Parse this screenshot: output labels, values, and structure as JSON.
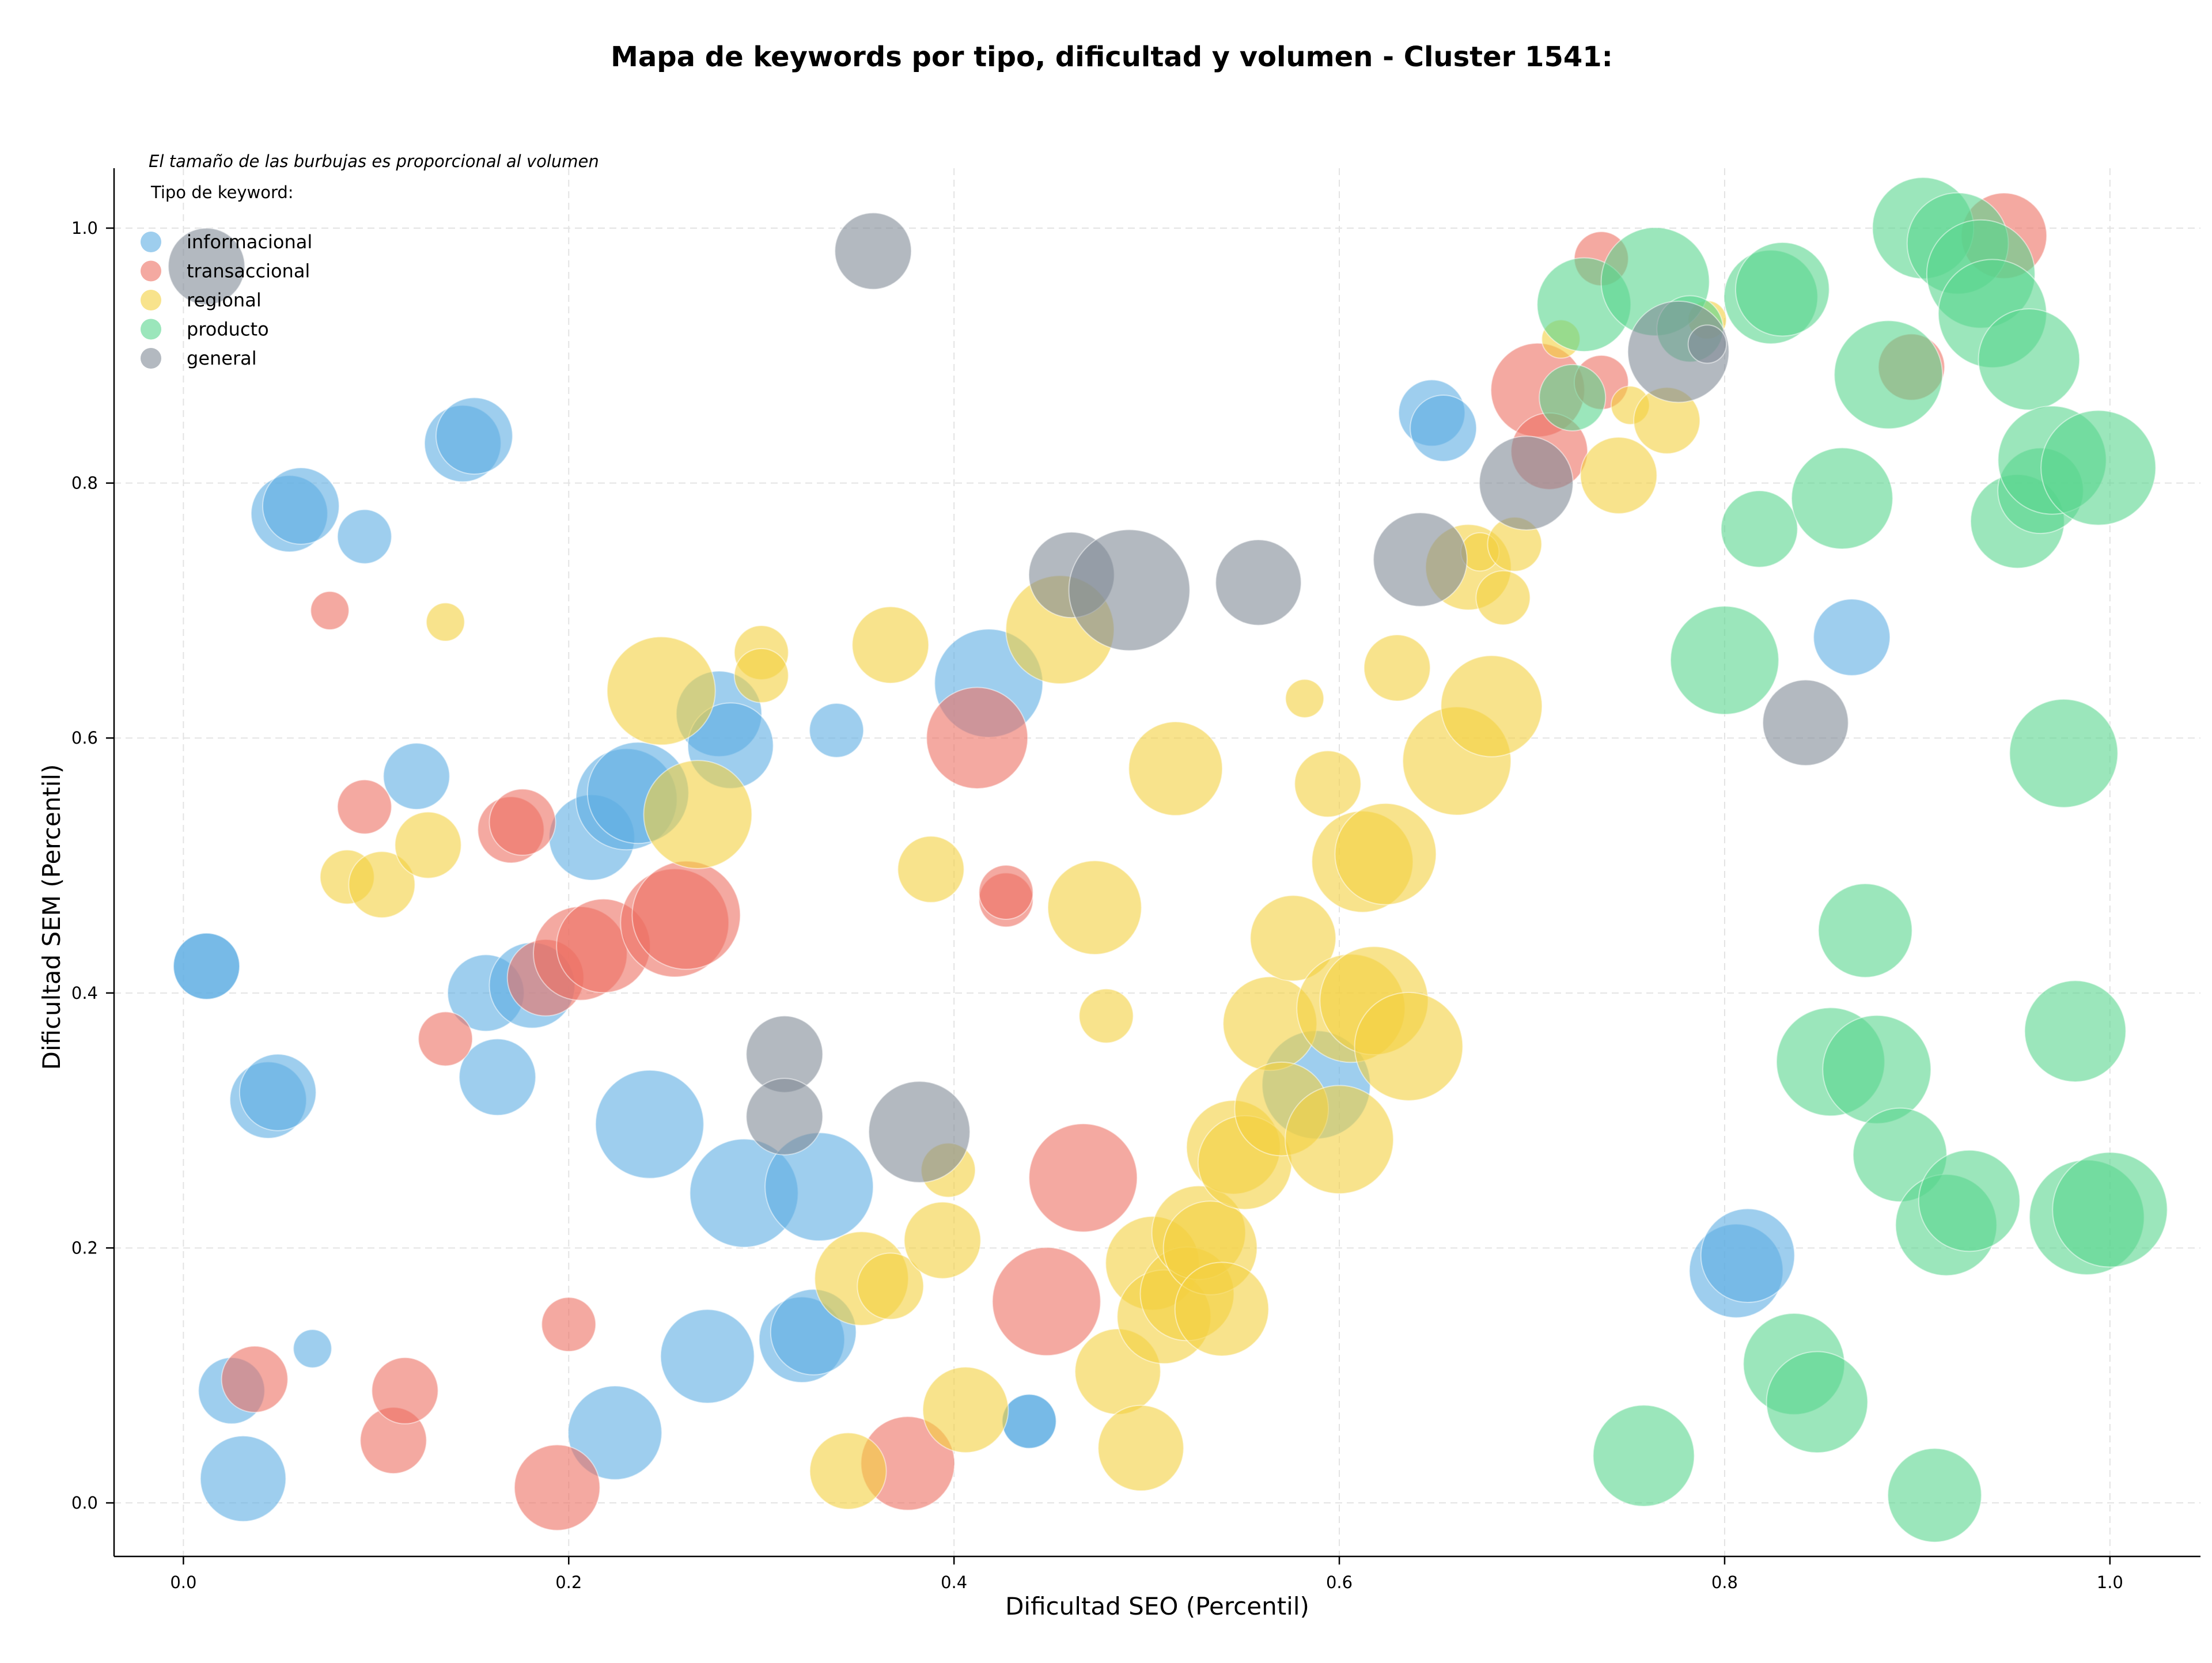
{
  "chart_data": {
    "type": "scatter",
    "title": "Mapa de keywords por tipo, dificultad y volumen - Cluster 1541:",
    "xlabel": "Dificultad SEO (Percentil)",
    "ylabel": "Dificultad SEM (Percentil)",
    "xlim": [
      -0.036,
      1.047
    ],
    "ylim": [
      -0.042,
      1.047
    ],
    "xticks": [
      0.0,
      0.2,
      0.4,
      0.6,
      0.8,
      1.0
    ],
    "yticks": [
      0.0,
      0.2,
      0.4,
      0.6,
      0.8,
      1.0
    ],
    "xtick_labels": [
      "0.0",
      "0.2",
      "0.4",
      "0.6",
      "0.8",
      "1.0"
    ],
    "ytick_labels": [
      "0.0",
      "0.2",
      "0.4",
      "0.6",
      "0.8",
      "1.0"
    ],
    "grid": true,
    "annotation": "El tamaño de las burbujas es proporcional al volumen",
    "legend": {
      "title": "Tipo de keyword:",
      "placement": "top-left"
    },
    "size_encoding": "volume (relative bubble size 1-10)",
    "series": [
      {
        "name": "informacional",
        "color": "#5dade2",
        "points": [
          [
            0.012,
            0.421,
            3
          ],
          [
            0.012,
            0.421,
            3
          ],
          [
            0.025,
            0.088,
            3
          ],
          [
            0.031,
            0.019,
            5
          ],
          [
            0.044,
            0.316,
            4
          ],
          [
            0.049,
            0.322,
            4
          ],
          [
            0.055,
            0.776,
            4
          ],
          [
            0.061,
            0.782,
            4
          ],
          [
            0.067,
            0.121,
            1
          ],
          [
            0.094,
            0.758,
            2
          ],
          [
            0.121,
            0.57,
            3
          ],
          [
            0.145,
            0.831,
            4
          ],
          [
            0.151,
            0.837,
            4
          ],
          [
            0.157,
            0.4,
            4
          ],
          [
            0.163,
            0.334,
            4
          ],
          [
            0.181,
            0.406,
            5
          ],
          [
            0.212,
            0.522,
            5
          ],
          [
            0.224,
            0.055,
            6
          ],
          [
            0.23,
            0.552,
            7
          ],
          [
            0.236,
            0.557,
            7
          ],
          [
            0.242,
            0.297,
            8
          ],
          [
            0.272,
            0.115,
            6
          ],
          [
            0.278,
            0.619,
            5
          ],
          [
            0.284,
            0.594,
            5
          ],
          [
            0.291,
            0.243,
            8
          ],
          [
            0.321,
            0.128,
            5
          ],
          [
            0.327,
            0.134,
            5
          ],
          [
            0.33,
            0.248,
            8
          ],
          [
            0.339,
            0.606,
            2
          ],
          [
            0.418,
            0.643,
            8
          ],
          [
            0.439,
            0.064,
            2
          ],
          [
            0.439,
            0.064,
            2
          ],
          [
            0.588,
            0.328,
            8
          ],
          [
            0.648,
            0.855,
            3
          ],
          [
            0.654,
            0.843,
            3
          ],
          [
            0.806,
            0.182,
            6
          ],
          [
            0.812,
            0.194,
            6
          ],
          [
            0.866,
            0.679,
            4
          ]
        ]
      },
      {
        "name": "transaccional",
        "color": "#ec7063",
        "points": [
          [
            0.037,
            0.097,
            3
          ],
          [
            0.076,
            0.7,
            1
          ],
          [
            0.094,
            0.546,
            2
          ],
          [
            0.109,
            0.049,
            3
          ],
          [
            0.115,
            0.088,
            3
          ],
          [
            0.136,
            0.364,
            2
          ],
          [
            0.17,
            0.528,
            3
          ],
          [
            0.176,
            0.534,
            3
          ],
          [
            0.188,
            0.412,
            4
          ],
          [
            0.194,
            0.012,
            5
          ],
          [
            0.2,
            0.14,
            2
          ],
          [
            0.206,
            0.431,
            6
          ],
          [
            0.218,
            0.437,
            6
          ],
          [
            0.255,
            0.455,
            8
          ],
          [
            0.261,
            0.461,
            8
          ],
          [
            0.376,
            0.031,
            6
          ],
          [
            0.412,
            0.6,
            7
          ],
          [
            0.427,
            0.473,
            2
          ],
          [
            0.427,
            0.479,
            2
          ],
          [
            0.448,
            0.158,
            8
          ],
          [
            0.467,
            0.255,
            8
          ],
          [
            0.703,
            0.873,
            6
          ],
          [
            0.709,
            0.825,
            4
          ],
          [
            0.736,
            0.976,
            2
          ],
          [
            0.736,
            0.879,
            2
          ],
          [
            0.897,
            0.891,
            3
          ],
          [
            0.945,
            0.994,
            5
          ]
        ]
      },
      {
        "name": "regional",
        "color": "#f4d03f",
        "points": [
          [
            0.085,
            0.491,
            2
          ],
          [
            0.103,
            0.485,
            3
          ],
          [
            0.127,
            0.516,
            3
          ],
          [
            0.136,
            0.691,
            1
          ],
          [
            0.248,
            0.637,
            8
          ],
          [
            0.267,
            0.54,
            8
          ],
          [
            0.3,
            0.667,
            2
          ],
          [
            0.3,
            0.649,
            2
          ],
          [
            0.345,
            0.025,
            4
          ],
          [
            0.352,
            0.176,
            6
          ],
          [
            0.367,
            0.673,
            4
          ],
          [
            0.367,
            0.17,
            3
          ],
          [
            0.388,
            0.497,
            3
          ],
          [
            0.394,
            0.206,
            4
          ],
          [
            0.397,
            0.261,
            2
          ],
          [
            0.406,
            0.073,
            5
          ],
          [
            0.455,
            0.685,
            8
          ],
          [
            0.473,
            0.467,
            6
          ],
          [
            0.479,
            0.382,
            2
          ],
          [
            0.485,
            0.103,
            5
          ],
          [
            0.497,
            0.043,
            5
          ],
          [
            0.503,
            0.188,
            6
          ],
          [
            0.509,
            0.146,
            6
          ],
          [
            0.515,
            0.576,
            6
          ],
          [
            0.521,
            0.164,
            6
          ],
          [
            0.527,
            0.212,
            6
          ],
          [
            0.533,
            0.2,
            6
          ],
          [
            0.539,
            0.152,
            6
          ],
          [
            0.545,
            0.279,
            6
          ],
          [
            0.551,
            0.267,
            6
          ],
          [
            0.564,
            0.376,
            6
          ],
          [
            0.57,
            0.309,
            6
          ],
          [
            0.576,
            0.443,
            5
          ],
          [
            0.582,
            0.631,
            1
          ],
          [
            0.594,
            0.564,
            3
          ],
          [
            0.6,
            0.285,
            8
          ],
          [
            0.606,
            0.388,
            8
          ],
          [
            0.612,
            0.503,
            7
          ],
          [
            0.618,
            0.394,
            8
          ],
          [
            0.624,
            0.509,
            7
          ],
          [
            0.63,
            0.655,
            3
          ],
          [
            0.636,
            0.358,
            8
          ],
          [
            0.661,
            0.582,
            8
          ],
          [
            0.667,
            0.734,
            5
          ],
          [
            0.673,
            0.746,
            1
          ],
          [
            0.679,
            0.625,
            7
          ],
          [
            0.685,
            0.71,
            2
          ],
          [
            0.691,
            0.752,
            2
          ],
          [
            0.715,
            0.913,
            1
          ],
          [
            0.745,
            0.806,
            4
          ],
          [
            0.751,
            0.861,
            1
          ],
          [
            0.77,
            0.849,
            3
          ],
          [
            0.791,
            0.928,
            1
          ]
        ]
      },
      {
        "name": "producto",
        "color": "#58d68d",
        "points": [
          [
            0.721,
            0.867,
            3
          ],
          [
            0.727,
            0.94,
            6
          ],
          [
            0.758,
            0.037,
            7
          ],
          [
            0.764,
            0.958,
            8
          ],
          [
            0.782,
            0.921,
            3
          ],
          [
            0.8,
            0.661,
            8
          ],
          [
            0.818,
            0.764,
            4
          ],
          [
            0.824,
            0.946,
            6
          ],
          [
            0.83,
            0.952,
            6
          ],
          [
            0.836,
            0.109,
            7
          ],
          [
            0.848,
            0.079,
            7
          ],
          [
            0.855,
            0.346,
            8
          ],
          [
            0.861,
            0.788,
            7
          ],
          [
            0.873,
            0.449,
            6
          ],
          [
            0.879,
            0.34,
            8
          ],
          [
            0.885,
            0.885,
            8
          ],
          [
            0.891,
            0.273,
            6
          ],
          [
            0.903,
            1.0,
            7
          ],
          [
            0.909,
            0.006,
            6
          ],
          [
            0.915,
            0.218,
            7
          ],
          [
            0.921,
            0.988,
            7
          ],
          [
            0.927,
            0.237,
            7
          ],
          [
            0.933,
            0.964,
            8
          ],
          [
            0.939,
            0.933,
            8
          ],
          [
            0.952,
            0.77,
            6
          ],
          [
            0.958,
            0.897,
            7
          ],
          [
            0.964,
            0.794,
            5
          ],
          [
            0.97,
            0.818,
            8
          ],
          [
            0.976,
            0.588,
            8
          ],
          [
            0.982,
            0.37,
            7
          ],
          [
            0.988,
            0.224,
            9
          ],
          [
            0.994,
            0.812,
            9
          ],
          [
            1.0,
            0.23,
            9
          ]
        ]
      },
      {
        "name": "general",
        "color": "#808b96",
        "points": [
          [
            0.012,
            0.97,
            4
          ],
          [
            0.312,
            0.352,
            4
          ],
          [
            0.312,
            0.303,
            4
          ],
          [
            0.358,
            0.982,
            4
          ],
          [
            0.382,
            0.291,
            7
          ],
          [
            0.461,
            0.728,
            5
          ],
          [
            0.491,
            0.716,
            10
          ],
          [
            0.558,
            0.722,
            5
          ],
          [
            0.642,
            0.74,
            6
          ],
          [
            0.697,
            0.8,
            6
          ],
          [
            0.776,
            0.903,
            7
          ],
          [
            0.791,
            0.909,
            1
          ],
          [
            0.842,
            0.612,
            5
          ]
        ]
      }
    ]
  }
}
